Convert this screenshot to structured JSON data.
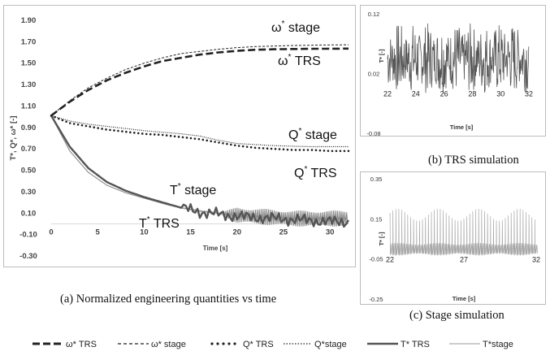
{
  "captions": {
    "a": "(a)  Normalized engineering quantities vs time",
    "b": "(b)   TRS simulation",
    "c": "(c)   Stage simulation"
  },
  "legend": [
    {
      "label": "ω* TRS",
      "style": "long-dash"
    },
    {
      "label": "ω* stage",
      "style": "short-dash"
    },
    {
      "label": "Q* TRS",
      "style": "round-dot"
    },
    {
      "label": "Q*stage",
      "style": "dense-dot"
    },
    {
      "label": "T*  TRS",
      "style": "solid-thick"
    },
    {
      "label": "T*stage",
      "style": "solid-thin"
    }
  ],
  "colors": {
    "trs": "#222222",
    "stage": "#8a8a8a",
    "frame": "#bdbdbd",
    "axis": "#d9d9d9"
  },
  "chart_data": [
    {
      "id": "a",
      "type": "line",
      "xlabel": "Time [s]",
      "ylabel": "T*, Q*, ω* [-]",
      "xlim": [
        0,
        32
      ],
      "ylim": [
        -0.3,
        1.9
      ],
      "xticks": [
        0,
        5,
        10,
        15,
        20,
        25,
        30
      ],
      "yticks": [
        -0.3,
        -0.1,
        0.1,
        0.3,
        0.5,
        0.7,
        0.9,
        1.1,
        1.3,
        1.5,
        1.7,
        1.9
      ],
      "ytick_labels": [
        "-0.30",
        "-0.10",
        "0.10",
        "0.30",
        "0.50",
        "0.70",
        "0.90",
        "1.10",
        "1.30",
        "1.50",
        "1.70",
        "1.90"
      ],
      "annotations": [
        "ω* stage",
        "ω* TRS",
        "Q* stage",
        "Q* TRS",
        "T* stage",
        "T* TRS"
      ],
      "series": [
        {
          "name": "ω* TRS",
          "x": [
            0,
            2,
            4,
            6,
            8,
            10,
            12,
            14,
            16,
            18,
            20,
            22,
            24,
            26,
            28,
            30,
            32
          ],
          "y": [
            1.01,
            1.14,
            1.25,
            1.34,
            1.41,
            1.47,
            1.52,
            1.55,
            1.58,
            1.6,
            1.615,
            1.625,
            1.63,
            1.632,
            1.634,
            1.635,
            1.636
          ]
        },
        {
          "name": "ω* stage",
          "x": [
            0,
            2,
            4,
            6,
            8,
            10,
            12,
            14,
            16,
            18,
            20,
            22,
            24,
            26,
            28,
            30,
            32
          ],
          "y": [
            1.01,
            1.15,
            1.27,
            1.36,
            1.44,
            1.5,
            1.55,
            1.59,
            1.61,
            1.63,
            1.645,
            1.655,
            1.66,
            1.665,
            1.668,
            1.67,
            1.672
          ]
        },
        {
          "name": "Q* TRS",
          "x": [
            0,
            2,
            4,
            6,
            8,
            10,
            12,
            14,
            16,
            18,
            20,
            22,
            24,
            26,
            28,
            30,
            32
          ],
          "y": [
            1.01,
            0.94,
            0.91,
            0.88,
            0.86,
            0.84,
            0.83,
            0.81,
            0.79,
            0.76,
            0.73,
            0.71,
            0.7,
            0.69,
            0.69,
            0.68,
            0.68
          ]
        },
        {
          "name": "Q*stage",
          "x": [
            0,
            2,
            4,
            6,
            8,
            10,
            12,
            14,
            16,
            18,
            20,
            22,
            24,
            26,
            28,
            30,
            32
          ],
          "y": [
            1.01,
            0.96,
            0.93,
            0.91,
            0.89,
            0.87,
            0.855,
            0.84,
            0.82,
            0.78,
            0.75,
            0.74,
            0.73,
            0.725,
            0.72,
            0.72,
            0.72
          ]
        },
        {
          "name": "T*  TRS",
          "x": [
            0,
            2,
            4,
            6,
            8,
            10,
            12,
            14,
            16,
            18,
            20,
            22,
            24,
            26,
            28,
            30,
            32
          ],
          "y": [
            1.01,
            0.72,
            0.52,
            0.39,
            0.31,
            0.25,
            0.2,
            0.15,
            0.11,
            0.09,
            0.07,
            0.06,
            0.05,
            0.04,
            0.03,
            0.02,
            0.02
          ]
        },
        {
          "name": "T*stage",
          "x": [
            0,
            2,
            4,
            6,
            8,
            10,
            12,
            14,
            16,
            18,
            20,
            22,
            24,
            26,
            28,
            30,
            32
          ],
          "y": [
            1.01,
            0.68,
            0.48,
            0.36,
            0.29,
            0.24,
            0.19,
            0.15,
            0.12,
            0.1,
            0.08,
            0.07,
            0.06,
            0.05,
            0.05,
            0.05,
            0.05
          ],
          "oscillation_after_x": 18,
          "oscillation_amplitude": 0.15
        }
      ]
    },
    {
      "id": "b",
      "type": "line",
      "xlabel": "Time [s]",
      "ylabel": "T* [-]",
      "xlim": [
        22,
        32
      ],
      "ylim": [
        -0.08,
        0.12
      ],
      "xticks": [
        22,
        24,
        26,
        28,
        30,
        32
      ],
      "yticks": [
        -0.08,
        0.02,
        0.12
      ],
      "ytick_labels": [
        "-0.08",
        "0.02",
        "0.12"
      ],
      "series": [
        {
          "mean": 0.045,
          "amplitude": 0.06
        }
      ]
    },
    {
      "id": "c",
      "type": "line",
      "xlabel": "Time [s]",
      "ylabel": "T* [-]",
      "xlim": [
        22,
        32
      ],
      "ylim": [
        -0.25,
        0.35
      ],
      "xticks": [
        22,
        27,
        32
      ],
      "yticks": [
        -0.25,
        -0.05,
        0.15,
        0.35
      ],
      "ytick_labels": [
        "-0.25",
        "-0.05",
        "0.15",
        "0.35"
      ],
      "series": [
        {
          "mean": 0.0,
          "amplitude": 0.2,
          "period": 0.2
        }
      ]
    }
  ]
}
